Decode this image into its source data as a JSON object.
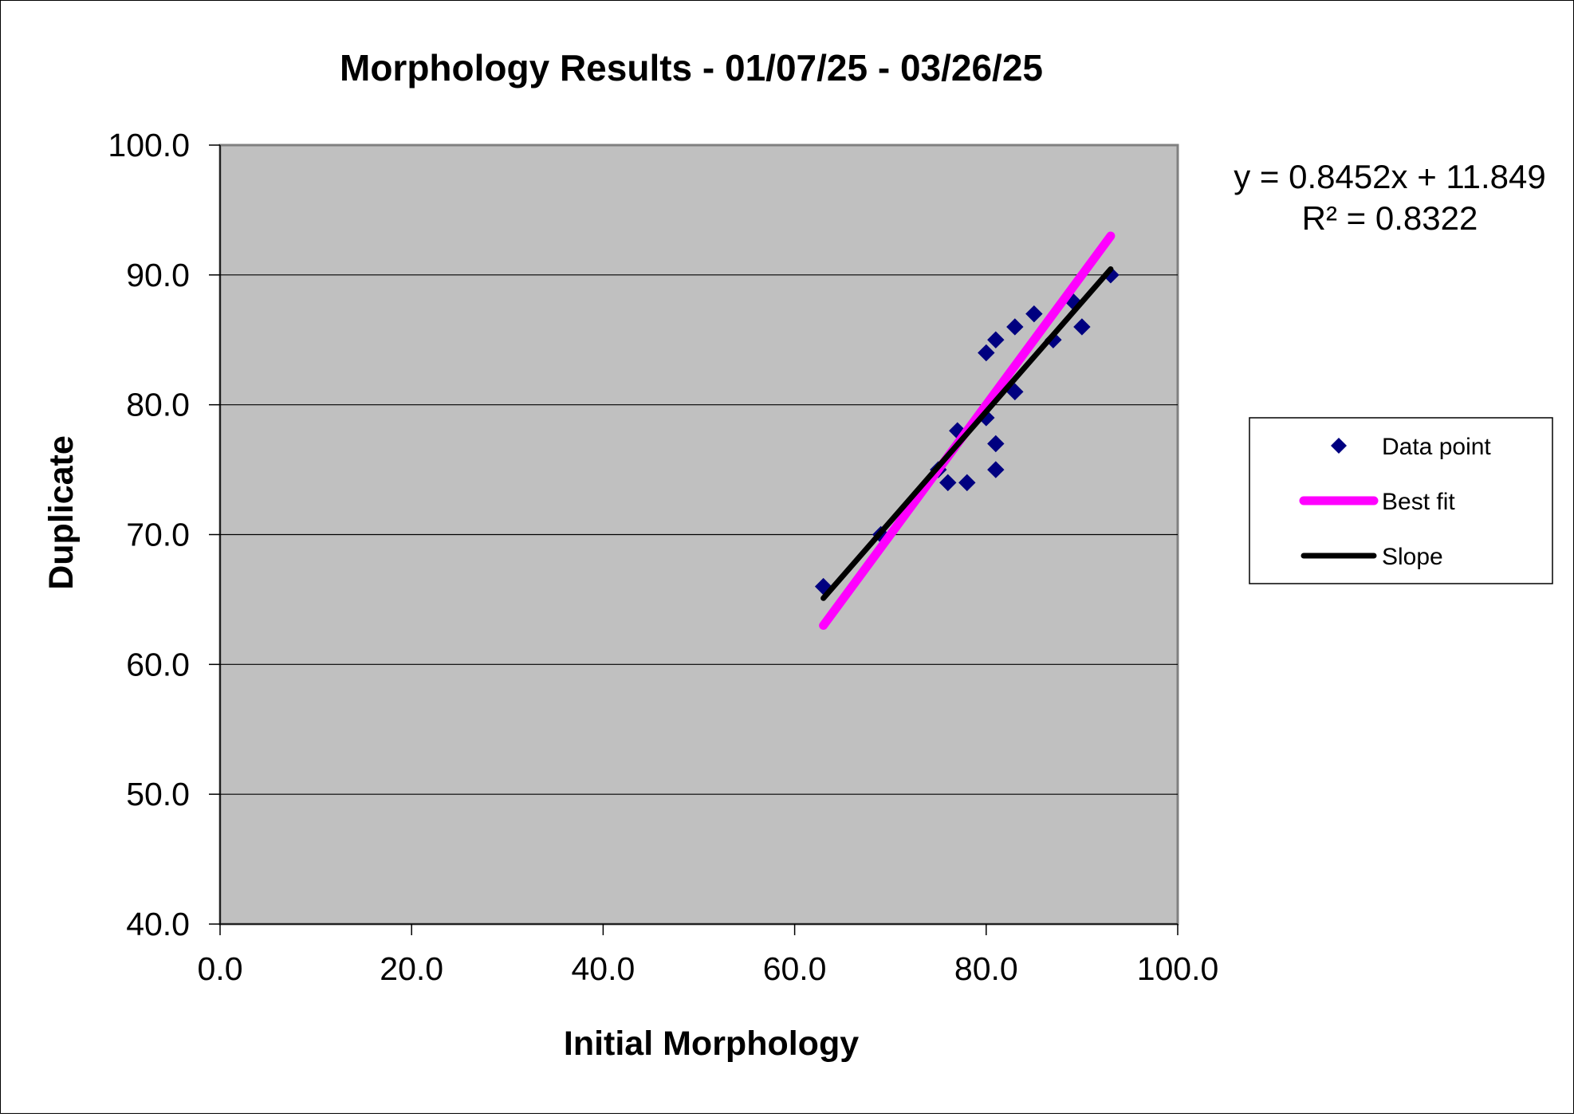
{
  "chart_data": {
    "type": "scatter",
    "title": "Morphology Results - 01/07/25 - 03/26/25",
    "xlabel": "Initial Morphology",
    "ylabel": "Duplicate",
    "xlim": [
      0,
      100
    ],
    "ylim": [
      40,
      100
    ],
    "x_ticks": [
      "0.0",
      "20.0",
      "40.0",
      "60.0",
      "80.0",
      "100.0"
    ],
    "y_ticks": [
      "40.0",
      "50.0",
      "60.0",
      "70.0",
      "80.0",
      "90.0",
      "100.0"
    ],
    "grid": "horizontal",
    "plot_background": "#c0c0c0",
    "legend_position": "right",
    "series": [
      {
        "name": "Data point",
        "kind": "points",
        "marker": "diamond",
        "color": "#000080",
        "x": [
          63,
          69,
          75,
          76,
          77,
          78,
          80,
          80,
          81,
          81,
          81,
          83,
          83,
          85,
          87,
          89,
          90,
          93
        ],
        "y": [
          66,
          70,
          75,
          74,
          78,
          74,
          79,
          84,
          77,
          75,
          85,
          81,
          86,
          87,
          85,
          88,
          86,
          90
        ]
      },
      {
        "name": "Best fit",
        "kind": "line",
        "color": "#ff00ff",
        "x": [
          63,
          93
        ],
        "y": [
          63,
          93
        ]
      },
      {
        "name": "Slope",
        "kind": "line",
        "color": "#000000",
        "x": [
          63,
          93
        ],
        "y": [
          65.1,
          90.45
        ]
      }
    ],
    "annotations": {
      "equation": "y = 0.8452x + 11.849",
      "r_squared": "R² = 0.8322"
    }
  }
}
